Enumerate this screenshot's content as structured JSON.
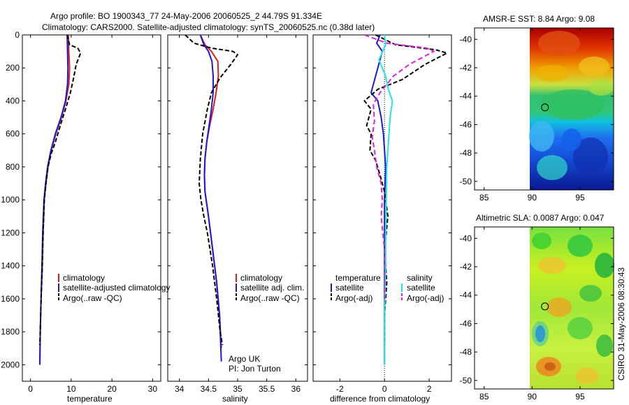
{
  "header": {
    "title_line1": "Argo profile: BO 1900343_77 24-May-2006 20060525_2 44.79S 91.334E",
    "title_line2": "Climatology: CARS2000. Satellite-adjusted climatology: synTS_20060525.nc (0.38d later)"
  },
  "colors": {
    "climatology": "#e01b1b",
    "satellite": "#1a1ad6",
    "argo": "#000000",
    "cyan": "#22e6e6",
    "magenta": "#e020e0"
  },
  "chart_data": [
    {
      "type": "line",
      "id": "temperature",
      "xlabel": "temperature",
      "ylabel": "",
      "xlim": [
        -2,
        32
      ],
      "ylim": [
        2100,
        0
      ],
      "xticks": [
        0,
        10,
        20,
        30
      ],
      "yticks": [
        0,
        200,
        400,
        600,
        800,
        1000,
        1200,
        1400,
        1600,
        1800,
        2000
      ],
      "series": [
        {
          "name": "climatology",
          "color": "#e01b1b",
          "dash": "",
          "x": [
            9.3,
            9.4,
            9.6,
            9.4,
            8.7,
            7.6,
            6.2,
            5.1,
            4.3,
            3.8,
            3.4,
            3.1,
            2.9,
            2.6,
            2.4,
            2.3
          ],
          "y": [
            0,
            100,
            200,
            300,
            400,
            500,
            600,
            700,
            800,
            900,
            1000,
            1200,
            1400,
            1600,
            1800,
            2000
          ]
        },
        {
          "name": "satellite-adjusted climatology",
          "color": "#1a1ad6",
          "dash": "",
          "x": [
            9.0,
            9.1,
            9.2,
            9.1,
            8.6,
            7.5,
            6.1,
            5.0,
            4.2,
            3.7,
            3.3,
            3.0,
            2.8,
            2.6,
            2.4,
            2.3
          ],
          "y": [
            0,
            100,
            200,
            300,
            400,
            500,
            600,
            700,
            800,
            900,
            1000,
            1200,
            1400,
            1600,
            1800,
            2000
          ]
        },
        {
          "name": "Argo(..raw -QC)",
          "color": "#000000",
          "dash": "6,3",
          "x": [
            9.0,
            9.6,
            11.6,
            12.3,
            11.2,
            10.6,
            9.8,
            8.6,
            7.3,
            6.1,
            5.1,
            4.3,
            3.8,
            3.4,
            3.1,
            2.9,
            2.6,
            2.4,
            2.3
          ],
          "y": [
            0,
            60,
            80,
            110,
            180,
            260,
            350,
            450,
            550,
            650,
            720,
            800,
            900,
            1000,
            1200,
            1400,
            1600,
            1800,
            1880
          ]
        }
      ],
      "legend": {
        "position": "bottom-right",
        "entries": [
          "climatology",
          "satellite-adjusted climatology",
          "Argo(..raw -QC)"
        ]
      }
    },
    {
      "type": "line",
      "id": "salinity",
      "xlabel": "salinity",
      "ylabel": "",
      "xlim": [
        33.8,
        36.2
      ],
      "ylim": [
        2100,
        0
      ],
      "xticks": [
        34,
        34.5,
        35,
        35.5,
        36
      ],
      "tick_labels": [
        "34",
        "34.5",
        "35",
        "35.5",
        "36"
      ],
      "series": [
        {
          "name": "climatology",
          "color": "#e01b1b",
          "dash": "",
          "x": [
            34.36,
            34.44,
            34.55,
            34.66,
            34.67,
            34.63,
            34.58,
            34.52,
            34.47,
            34.44,
            34.43,
            34.44,
            34.5,
            34.57,
            34.64,
            34.69,
            34.72
          ],
          "y": [
            0,
            60,
            100,
            160,
            250,
            350,
            450,
            550,
            650,
            750,
            850,
            950,
            1100,
            1300,
            1500,
            1700,
            1900
          ]
        },
        {
          "name": "satellite adj. clim.",
          "color": "#1a1ad6",
          "dash": "",
          "x": [
            34.36,
            34.42,
            34.5,
            34.56,
            34.58,
            34.58,
            34.55,
            34.51,
            34.47,
            34.44,
            34.43,
            34.44,
            34.5,
            34.57,
            34.64,
            34.69,
            34.72
          ],
          "y": [
            0,
            60,
            100,
            160,
            250,
            350,
            450,
            550,
            650,
            750,
            850,
            950,
            1100,
            1300,
            1500,
            1700,
            1980
          ]
        },
        {
          "name": "Argo(..raw -QC)",
          "color": "#000000",
          "dash": "6,3",
          "x": [
            34.1,
            34.25,
            34.55,
            34.92,
            35.0,
            34.88,
            34.7,
            34.55,
            34.48,
            34.4,
            34.36,
            34.34,
            34.37,
            34.42,
            34.48,
            34.57,
            34.64,
            34.7,
            34.74
          ],
          "y": [
            0,
            50,
            80,
            100,
            120,
            180,
            260,
            350,
            450,
            600,
            750,
            900,
            1000,
            1100,
            1200,
            1400,
            1600,
            1800,
            1880
          ]
        }
      ],
      "legend": {
        "position": "bottom-right",
        "entries": [
          "climatology",
          "satellite adj. clim.",
          "Argo(..raw -QC)"
        ]
      },
      "annotations": [
        "Argo UK",
        "PI: Jon Turton"
      ]
    },
    {
      "type": "line",
      "id": "difference",
      "xlabel": "difference from climatology",
      "ylabel": "",
      "xlim": [
        -3.2,
        3.0
      ],
      "ylim": [
        2100,
        0
      ],
      "xticks": [
        -2,
        0,
        2
      ],
      "zero_line": 0,
      "series": [
        {
          "name": "temperature satellite",
          "color": "#1a1ad6",
          "dash": "",
          "x": [
            -0.2,
            -0.35,
            -0.1,
            -0.3,
            -0.5,
            -0.6,
            -0.3,
            -0.15,
            -0.05,
            0.0,
            0.05,
            0.0,
            0.0,
            0.0,
            0.0,
            0.0
          ],
          "y": [
            0,
            50,
            100,
            200,
            300,
            350,
            400,
            500,
            600,
            700,
            800,
            1000,
            1200,
            1400,
            1600,
            2000
          ]
        },
        {
          "name": "temperature Argo(-adj)",
          "color": "#000000",
          "dash": "6,3",
          "x": [
            -0.4,
            0.5,
            2.3,
            2.8,
            1.8,
            0.8,
            -0.3,
            -0.9,
            -0.6,
            -0.8,
            -0.6,
            -0.65,
            -0.4,
            -0.2,
            0.0,
            0.15,
            0.0,
            0.1,
            0.0,
            0.0
          ],
          "y": [
            0,
            60,
            90,
            110,
            180,
            270,
            330,
            400,
            450,
            550,
            600,
            700,
            760,
            850,
            950,
            1100,
            1300,
            1500,
            1700,
            1880
          ]
        },
        {
          "name": "salinity satellite",
          "color": "#22e6e6",
          "dash": "",
          "x": [
            0.0,
            0.05,
            -0.25,
            0.05,
            0.15,
            0.35,
            0.25,
            0.2,
            0.15,
            0.1,
            0.08,
            0.05,
            0.05,
            0.0,
            0.0
          ],
          "y": [
            0,
            60,
            150,
            250,
            320,
            400,
            500,
            600,
            700,
            800,
            1000,
            1200,
            1400,
            1700,
            2000
          ]
        },
        {
          "name": "salinity Argo(-adj)",
          "color": "#e020e0",
          "dash": "7,4",
          "x": [
            -0.9,
            0.1,
            1.9,
            2.2,
            1.1,
            0.4,
            -0.2,
            -0.5,
            -0.45,
            -0.55,
            -0.45,
            -0.35,
            -0.15,
            -0.1,
            -0.15,
            0.0,
            0.0
          ],
          "y": [
            0,
            50,
            80,
            100,
            180,
            250,
            350,
            420,
            520,
            620,
            700,
            800,
            900,
            1000,
            1100,
            1300,
            1600
          ]
        }
      ],
      "legend": {
        "position": "bottom",
        "headers": [
          "temperature",
          "salinity"
        ],
        "entries": [
          "satellite",
          "Argo(-adj)",
          "satellite",
          "Argo(-adj)"
        ]
      }
    },
    {
      "type": "heatmap",
      "id": "sst-map",
      "title": "AMSR-E SST: 8.84 Argo: 9.08",
      "xlim": [
        84,
        98.5
      ],
      "ylim": [
        -50.6,
        -39.2
      ],
      "xticks": [
        85,
        90,
        95
      ],
      "yticks": [
        -40,
        -42,
        -44,
        -46,
        -48,
        -50
      ],
      "tick_labels_y": [
        "-40",
        "-42",
        "-44",
        "-46",
        "-48",
        "-50"
      ],
      "data_region_lon": [
        90,
        98.5
      ],
      "marker": {
        "lon": 91.334,
        "lat": -44.79
      }
    },
    {
      "type": "heatmap",
      "id": "sla-map",
      "title": "Altimetric SLA: 0.0087 Argo: 0.047",
      "xlim": [
        84,
        98.5
      ],
      "ylim": [
        -50.6,
        -39.2
      ],
      "xticks": [
        85,
        90,
        95
      ],
      "yticks": [
        -40,
        -42,
        -44,
        -46,
        -48,
        -50
      ],
      "tick_labels_y": [
        "-40",
        "-42",
        "-44",
        "-46",
        "-48",
        "-50"
      ],
      "data_region_lon": [
        90,
        98.5
      ],
      "marker": {
        "lon": 91.334,
        "lat": -44.79
      }
    }
  ],
  "legend_text": {
    "temp": [
      "climatology",
      "satellite-adjusted climatology",
      "Argo(..raw -QC)"
    ],
    "sal": [
      "climatology",
      "satellite adj. clim.",
      "Argo(..raw -QC)"
    ],
    "diff_headers": [
      "temperature",
      "salinity"
    ],
    "diff_entries": [
      "satellite",
      "Argo(-adj)",
      "satellite",
      "Argo(-adj)"
    ]
  },
  "annotation": {
    "line1": "Argo UK",
    "line2": "PI: Jon Turton"
  },
  "side_label": "CSIRO 31-May-2006 08:30:43"
}
